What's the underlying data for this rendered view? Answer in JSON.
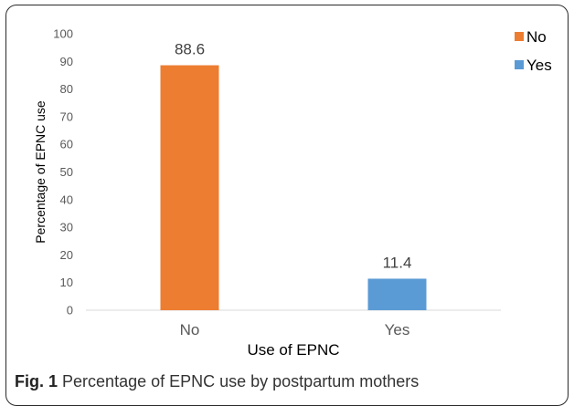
{
  "chart_data": {
    "type": "bar",
    "categories": [
      "No",
      "Yes"
    ],
    "values": [
      88.6,
      11.4
    ],
    "data_labels": [
      "88.6",
      "11.4"
    ],
    "xlabel": "Use of EPNC",
    "ylabel": "Percentage of EPNC use",
    "ylim": [
      0,
      100
    ],
    "yticks": [
      0,
      10,
      20,
      30,
      40,
      50,
      60,
      70,
      80,
      90,
      100
    ],
    "grid": false,
    "legend": {
      "position": "top-right",
      "entries": [
        {
          "label": "No",
          "color": "#ed7d31"
        },
        {
          "label": "Yes",
          "color": "#5b9bd5"
        }
      ]
    },
    "colors": [
      "#ed7d31",
      "#5b9bd5"
    ]
  },
  "caption": {
    "label": "Fig. 1",
    "text": "Percentage of EPNC use by postpartum mothers"
  }
}
